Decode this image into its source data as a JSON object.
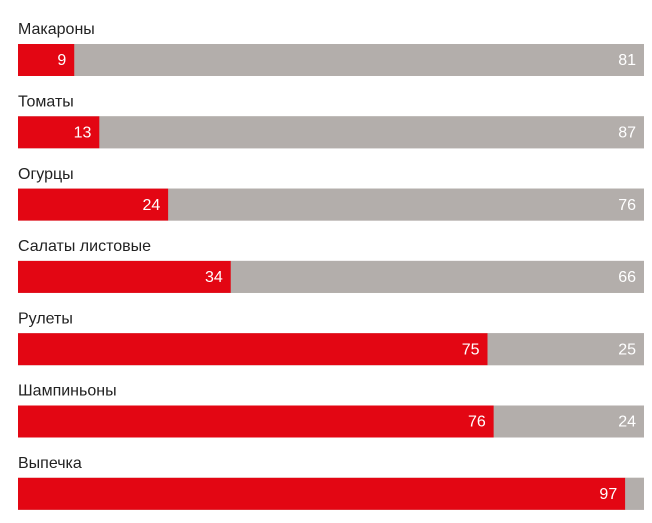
{
  "chart_data": {
    "type": "stacked-bar",
    "orientation": "horizontal",
    "categories": [
      "Макароны",
      "Томаты",
      "Огурцы",
      "Салаты листовые",
      "Рулеты",
      "Шампиньоны",
      "Выпечка"
    ],
    "xlim": [
      0,
      100
    ],
    "series": [
      {
        "color": "#e30613",
        "values": [
          9,
          13,
          24,
          34,
          75,
          76,
          97
        ]
      },
      {
        "color": "#b3aeab",
        "values": [
          81,
          87,
          76,
          66,
          25,
          24,
          3
        ]
      }
    ]
  }
}
